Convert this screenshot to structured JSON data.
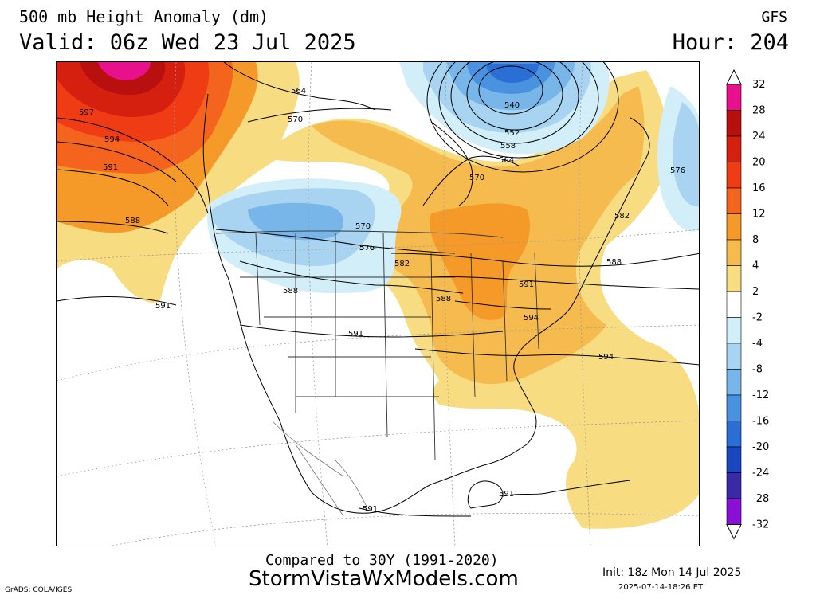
{
  "header": {
    "title_line1": "500 mb Height Anomaly (dm)",
    "title_line2": "Valid: 06z Wed 23 Jul 2025",
    "model": "GFS",
    "hour": "Hour: 204"
  },
  "footer": {
    "comparison": "Compared to 30Y (1991-2020)",
    "site": "StormVistaWxModels.com",
    "init": "Init: 18z Mon 14 Jul 2025",
    "issued": "2025-07-14-18:26 ET",
    "credit": "GrADS: COLA/IGES"
  },
  "colorbar": {
    "units": "dm",
    "ticks": [
      "32",
      "28",
      "24",
      "20",
      "16",
      "12",
      "8",
      "4",
      "2",
      "-2",
      "-4",
      "-8",
      "-12",
      "-16",
      "-20",
      "-24",
      "-28",
      "-32"
    ],
    "bins": [
      {
        "range": "28 to 32",
        "color": "#e8108c"
      },
      {
        "range": "24 to 28",
        "color": "#b80f0f"
      },
      {
        "range": "20 to 24",
        "color": "#d6200f"
      },
      {
        "range": "16 to 20",
        "color": "#f03c14"
      },
      {
        "range": "12 to 16",
        "color": "#f5641e"
      },
      {
        "range": "8 to 12",
        "color": "#f59a28"
      },
      {
        "range": "4 to 8",
        "color": "#f5bb4e"
      },
      {
        "range": "2 to 4",
        "color": "#f7dc82"
      },
      {
        "range": "-2 to 2",
        "color": "#ffffff"
      },
      {
        "range": "-4 to -2",
        "color": "#d2eef8"
      },
      {
        "range": "-8 to -4",
        "color": "#a8d4f2"
      },
      {
        "range": "-12 to -8",
        "color": "#78b6ea"
      },
      {
        "range": "-16 to -12",
        "color": "#4a92e0"
      },
      {
        "range": "-20 to -16",
        "color": "#2a6ed6"
      },
      {
        "range": "-24 to -20",
        "color": "#1a46c0"
      },
      {
        "range": "-28 to -24",
        "color": "#3b2aa8"
      },
      {
        "range": "-32 to -28",
        "color": "#8a10d8"
      }
    ]
  },
  "map": {
    "contour_labels": [
      "597",
      "594",
      "591",
      "588",
      "564",
      "570",
      "540",
      "552",
      "558",
      "564",
      "570",
      "576",
      "570",
      "576",
      "582",
      "588",
      "588",
      "582",
      "576",
      "591",
      "594",
      "591",
      "588",
      "591",
      "594",
      "591",
      "591"
    ]
  }
}
